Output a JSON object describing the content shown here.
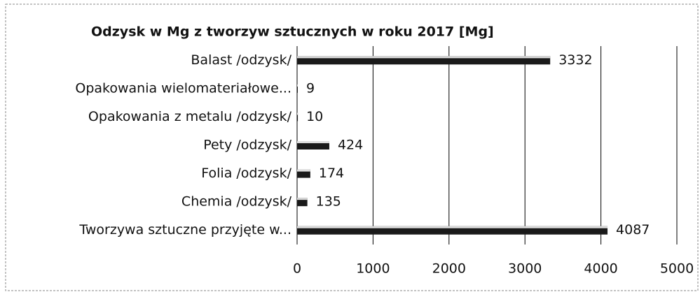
{
  "chart_data": {
    "type": "bar",
    "orientation": "horizontal",
    "title": "Odzysk w Mg z tworzyw sztucznych w roku 2017 [Mg]",
    "categories": [
      "Balast /odzysk/",
      "Opakowania wielomateriałowe...",
      "Opakowania z metalu /odzysk/",
      "Pety /odzysk/",
      "Folia /odzysk/",
      "Chemia /odzysk/",
      "Tworzywa sztuczne przyjęte w..."
    ],
    "values": [
      3332,
      9,
      10,
      424,
      174,
      135,
      4087
    ],
    "color": "#1a1a1a",
    "xlim": [
      0,
      5000
    ],
    "xticks": [
      0,
      1000,
      2000,
      3000,
      4000,
      5000
    ],
    "grid": true
  }
}
